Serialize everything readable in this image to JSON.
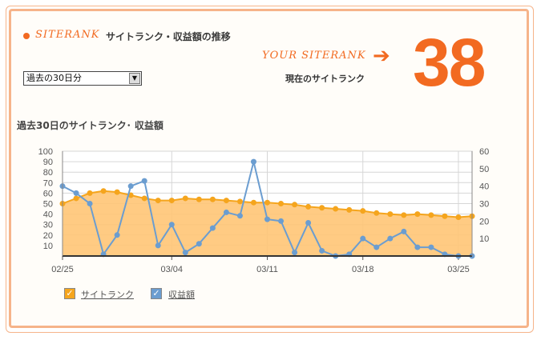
{
  "colors": {
    "accent": "#f26a21",
    "rank_fill": "#ffc575",
    "rank_line": "#f5a51d",
    "revenue_line": "#6b9dd0",
    "frame": "#f6b48a"
  },
  "header": {
    "brand": "SITERANK",
    "title": "サイトランク・収益額の推移"
  },
  "period_select": {
    "value": "過去の30日分",
    "arrow_icon": "triangle-down-icon"
  },
  "rank_box": {
    "label": "YOUR SITERANK",
    "arrow_icon": "arrow-right-icon",
    "sublabel": "現在のサイトランク",
    "value": "38"
  },
  "chart_section": {
    "title": "過去30日のサイトランク･ 収益額"
  },
  "legend": [
    {
      "label": "サイトランク",
      "checked": true,
      "color": "#f5a51d"
    },
    {
      "label": "収益額",
      "checked": true,
      "color": "#6b9dd0"
    }
  ],
  "chart_data": {
    "type": "line",
    "x": [
      "02/25",
      "02/26",
      "02/27",
      "02/28",
      "02/29",
      "03/01",
      "03/02",
      "03/03",
      "03/04",
      "03/05",
      "03/06",
      "03/07",
      "03/08",
      "03/09",
      "03/10",
      "03/11",
      "03/12",
      "03/13",
      "03/14",
      "03/15",
      "03/16",
      "03/17",
      "03/18",
      "03/19",
      "03/20",
      "03/21",
      "03/22",
      "03/23",
      "03/24",
      "03/25",
      "03/26"
    ],
    "xticks": [
      "02/25",
      "03/04",
      "03/11",
      "03/18",
      "03/25"
    ],
    "left_axis": {
      "ticks": [
        "100",
        "90",
        "80",
        "70",
        "60",
        "50",
        "40",
        "30",
        "20",
        "10"
      ],
      "ylim": [
        0,
        100
      ]
    },
    "right_axis": {
      "ticks": [
        "60",
        "50",
        "40",
        "30",
        "20",
        "10"
      ],
      "ylim": [
        0,
        60
      ]
    },
    "grid": true,
    "series": [
      {
        "name": "サイトランク",
        "axis": "left",
        "type": "area",
        "values": [
          50,
          55,
          60,
          62,
          61,
          58,
          55,
          53,
          53,
          55,
          54,
          54,
          53,
          52,
          51,
          51,
          50,
          49,
          47,
          46,
          45,
          44,
          43,
          41,
          40,
          39,
          40,
          39,
          38,
          37,
          38
        ]
      },
      {
        "name": "収益額",
        "axis": "right",
        "type": "line",
        "values": [
          40,
          36,
          30,
          1,
          12,
          40,
          43,
          6,
          18,
          2,
          7,
          16,
          25,
          23,
          54,
          21,
          20,
          2,
          19,
          3,
          0,
          1,
          10,
          5,
          10,
          14,
          5,
          5,
          1,
          0,
          0
        ]
      }
    ]
  }
}
